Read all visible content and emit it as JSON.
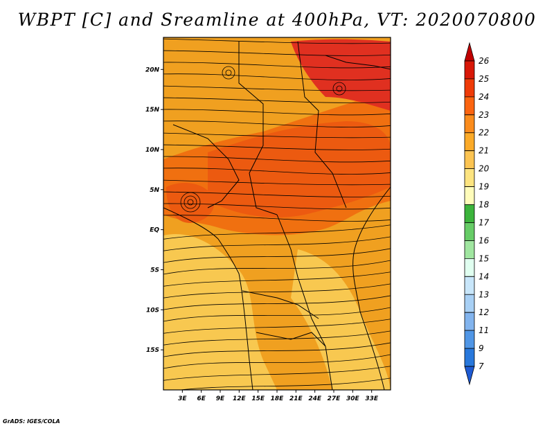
{
  "title": "WBPT [C] and Sreamline at 400hPa, VT: 2020070800",
  "credit": "GrADS: IGES/COLA",
  "map": {
    "lon_range": [
      0,
      36
    ],
    "lat_range": [
      -20,
      24
    ],
    "lat_ticks": [
      {
        "label": "20N",
        "lat": 20
      },
      {
        "label": "15N",
        "lat": 15
      },
      {
        "label": "10N",
        "lat": 10
      },
      {
        "label": "5N",
        "lat": 5
      },
      {
        "label": "EQ",
        "lat": 0
      },
      {
        "label": "5S",
        "lat": -5
      },
      {
        "label": "10S",
        "lat": -10
      },
      {
        "label": "15S",
        "lat": -15
      }
    ],
    "lon_ticks": [
      {
        "label": "3E",
        "lon": 3
      },
      {
        "label": "6E",
        "lon": 6
      },
      {
        "label": "9E",
        "lon": 9
      },
      {
        "label": "12E",
        "lon": 12
      },
      {
        "label": "15E",
        "lon": 15
      },
      {
        "label": "18E",
        "lon": 18
      },
      {
        "label": "21E",
        "lon": 21
      },
      {
        "label": "24E",
        "lon": 24
      },
      {
        "label": "27E",
        "lon": 27
      },
      {
        "label": "30E",
        "lon": 30
      },
      {
        "label": "33E",
        "lon": 33
      }
    ],
    "colors": {
      "base": "#f0a020",
      "light": "#f8c850",
      "warm": "#f07010",
      "hot": "#ec5a10",
      "red": "#e03020",
      "streamline": "#000000",
      "border": "#000000"
    }
  },
  "colorbar": {
    "levels": [
      "26",
      "25",
      "24",
      "23",
      "22",
      "21",
      "20",
      "19",
      "18",
      "17",
      "16",
      "15",
      "14",
      "13",
      "12",
      "11",
      "9",
      "7"
    ],
    "colors": [
      "#c00000",
      "#d81808",
      "#ef3b08",
      "#fb6410",
      "#fb8c1c",
      "#fbaa28",
      "#fcc452",
      "#fde480",
      "#fffcba",
      "#3cb43c",
      "#66cc66",
      "#a0e6a0",
      "#e0fff0",
      "#c8e6fa",
      "#a8d0f5",
      "#82b4ee",
      "#5096e6",
      "#2878dc",
      "#1e5ad2"
    ]
  }
}
